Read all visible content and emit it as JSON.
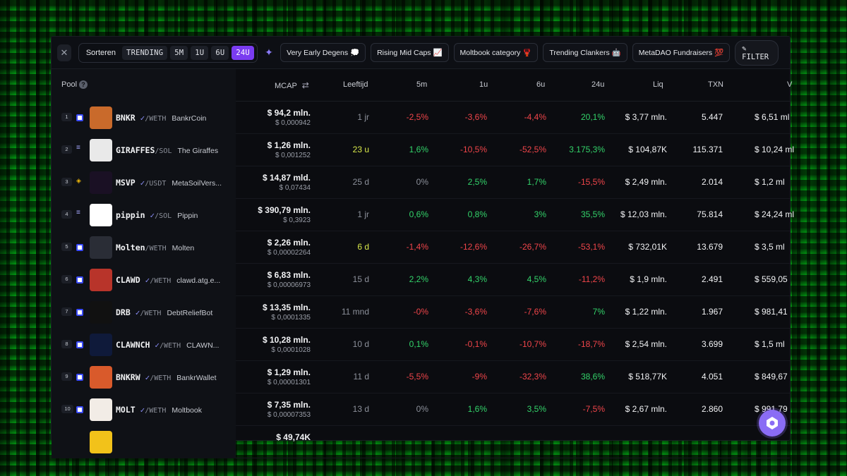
{
  "toolbar": {
    "sort_label": "Sorteren",
    "sort_options": [
      "TRENDING",
      "5M",
      "1U",
      "6U",
      "24U"
    ],
    "active_sort": "24U",
    "chips": [
      "Very Early Degens 💭",
      "Rising Mid Caps 📈",
      "Moltbook category 🦞",
      "Trending Clankers 🤖",
      "MetaDAO Fundraisers 💯"
    ],
    "filter_label": "FILTER"
  },
  "columns": {
    "pool": "Pool",
    "mcap": "MCAP",
    "age": "Leeftijd",
    "m5": "5m",
    "u1": "1u",
    "u6": "6u",
    "u24": "24u",
    "liq": "Liq",
    "txn": "TXN",
    "vol": "V"
  },
  "rows": [
    {
      "rank": "1",
      "symbol": "BNKR",
      "verified": true,
      "quote": "/WETH",
      "name": "BankrCoin",
      "mcap": "$ 94,2 mln.",
      "price": "$ 0,000942",
      "age": "1 jr",
      "m5": "-2,5%",
      "u1": "-3,6%",
      "u6": "-4,4%",
      "u24": "20,1%",
      "liq": "$ 3,77 mln.",
      "txn": "5.447",
      "vol": "$ 6,51 ml"
    },
    {
      "rank": "2",
      "symbol": "GIRAFFES",
      "verified": false,
      "quote": "/SOL",
      "name": "The Giraffes",
      "mcap": "$ 1,26 mln.",
      "price": "$ 0,001252",
      "age": "23 u",
      "m5": "1,6%",
      "u1": "-10,5%",
      "u6": "-52,5%",
      "u24": "3.175,3%",
      "liq": "$ 104,87K",
      "txn": "115.371",
      "vol": "$ 10,24 ml"
    },
    {
      "rank": "3",
      "symbol": "MSVP",
      "verified": true,
      "quote": "/USDT",
      "name": "MetaSoilVers...",
      "mcap": "$ 14,87 mld.",
      "price": "$ 0,07434",
      "age": "25 d",
      "m5": "0%",
      "u1": "2,5%",
      "u6": "1,7%",
      "u24": "-15,5%",
      "liq": "$ 2,49 mln.",
      "txn": "2.014",
      "vol": "$ 1,2 ml"
    },
    {
      "rank": "4",
      "symbol": "pippin",
      "verified": true,
      "quote": "/SOL",
      "name": "Pippin",
      "mcap": "$ 390,79 mln.",
      "price": "$ 0,3923",
      "age": "1 jr",
      "m5": "0,6%",
      "u1": "0,8%",
      "u6": "3%",
      "u24": "35,5%",
      "liq": "$ 12,03 mln.",
      "txn": "75.814",
      "vol": "$ 24,24 ml"
    },
    {
      "rank": "5",
      "symbol": "Molten",
      "verified": false,
      "quote": "/WETH",
      "name": "Molten",
      "mcap": "$ 2,26 mln.",
      "price": "$ 0,00002264",
      "age": "6 d",
      "m5": "-1,4%",
      "u1": "-12,6%",
      "u6": "-26,7%",
      "u24": "-53,1%",
      "liq": "$ 732,01K",
      "txn": "13.679",
      "vol": "$ 3,5 ml"
    },
    {
      "rank": "6",
      "symbol": "CLAWD",
      "verified": true,
      "quote": "/WETH",
      "name": "clawd.atg.e...",
      "mcap": "$ 6,83 mln.",
      "price": "$ 0,00006973",
      "age": "15 d",
      "m5": "2,2%",
      "u1": "4,3%",
      "u6": "4,5%",
      "u24": "-11,2%",
      "liq": "$ 1,9 mln.",
      "txn": "2.491",
      "vol": "$ 559,05"
    },
    {
      "rank": "7",
      "symbol": "DRB",
      "verified": true,
      "quote": "/WETH",
      "name": "DebtReliefBot",
      "mcap": "$ 13,35 mln.",
      "price": "$ 0,0001335",
      "age": "11 mnd",
      "m5": "-0%",
      "u1": "-3,6%",
      "u6": "-7,6%",
      "u24": "7%",
      "liq": "$ 1,22 mln.",
      "txn": "1.967",
      "vol": "$ 981,41"
    },
    {
      "rank": "8",
      "symbol": "CLAWNCH",
      "verified": true,
      "quote": "/WETH",
      "name": "CLAWN...",
      "mcap": "$ 10,28 mln.",
      "price": "$ 0,0001028",
      "age": "10 d",
      "m5": "0,1%",
      "u1": "-0,1%",
      "u6": "-10,7%",
      "u24": "-18,7%",
      "liq": "$ 2,54 mln.",
      "txn": "3.699",
      "vol": "$ 1,5 ml"
    },
    {
      "rank": "9",
      "symbol": "BNKRW",
      "verified": true,
      "quote": "/WETH",
      "name": "BankrWallet",
      "mcap": "$ 1,29 mln.",
      "price": "$ 0,00001301",
      "age": "11 d",
      "m5": "-5,5%",
      "u1": "-9%",
      "u6": "-32,3%",
      "u24": "38,6%",
      "liq": "$ 518,77K",
      "txn": "4.051",
      "vol": "$ 849,67"
    },
    {
      "rank": "10",
      "symbol": "MOLT",
      "verified": true,
      "quote": "/WETH",
      "name": "Moltbook",
      "mcap": "$ 7,35 mln.",
      "price": "$ 0,00007353",
      "age": "13 d",
      "m5": "0%",
      "u1": "1,6%",
      "u6": "3,5%",
      "u24": "-7,5%",
      "liq": "$ 2,67 mln.",
      "txn": "2.860",
      "vol": "$ 991,79"
    },
    {
      "rank": "",
      "symbol": "",
      "verified": false,
      "quote": "",
      "name": "",
      "mcap": "$ 49,74K",
      "price": "",
      "age": "",
      "m5": "",
      "u1": "",
      "u6": "",
      "u24": "",
      "liq": "",
      "txn": "",
      "vol": ""
    }
  ]
}
